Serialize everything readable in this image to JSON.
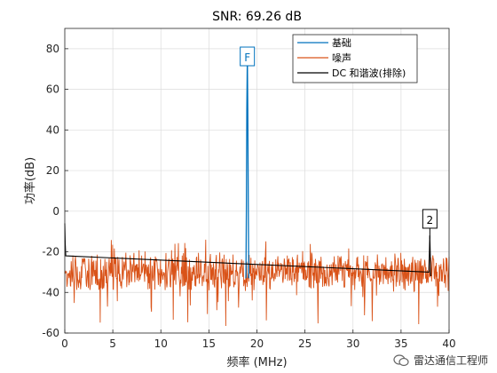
{
  "chart_data": {
    "type": "line",
    "title": "SNR:  69.26 dB",
    "xlabel": "频率 (MHz)",
    "ylabel": "功率(dB)",
    "xlim": [
      0,
      40
    ],
    "ylim": [
      -60,
      90
    ],
    "xticks": [
      0,
      5,
      10,
      15,
      20,
      25,
      30,
      35,
      40
    ],
    "yticks": [
      -60,
      -40,
      -20,
      0,
      20,
      40,
      60,
      80
    ],
    "grid": true,
    "legend_position": "top-right",
    "series": [
      {
        "name": "基础",
        "color": "#0072BD",
        "x": [
          18.85,
          18.9,
          18.95,
          19.0,
          19.05,
          19.1,
          19.15
        ],
        "y": [
          -33,
          0,
          50,
          76,
          50,
          0,
          -33
        ]
      },
      {
        "name": "噪声",
        "color": "#D95319",
        "noise_floor": -30,
        "noise_min": -58,
        "noise_max": -14
      },
      {
        "name": "DC 和谐波(排除)",
        "color": "#000000",
        "x": [
          0.0,
          0.05,
          0.1,
          37.9,
          38.0,
          38.1
        ],
        "y": [
          -6,
          -16,
          -22,
          -30,
          -12,
          -32
        ]
      }
    ],
    "annotations": [
      {
        "text": "F",
        "x": 19.0,
        "y": 76,
        "color": "#0072BD"
      },
      {
        "text": "2",
        "x": 38.0,
        "y": -4,
        "color": "#000000"
      }
    ]
  },
  "watermark": {
    "text": "雷达通信工程师"
  }
}
